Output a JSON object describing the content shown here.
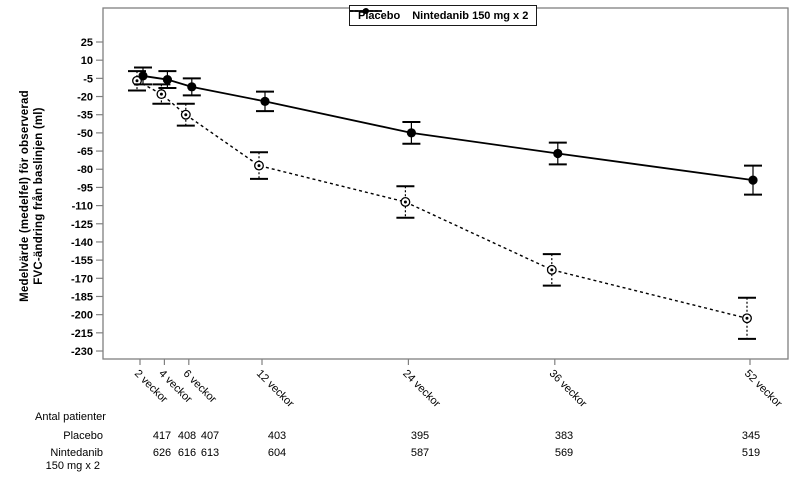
{
  "chart_data": {
    "type": "line",
    "ylabel_line1": "Medelvärde (medelfel) för observerad",
    "ylabel_line2": "FVC-ändring från baslinjen (ml)",
    "ylim": [
      -230,
      25
    ],
    "y_ticks": [
      25,
      10,
      -5,
      -20,
      -35,
      -50,
      -65,
      -80,
      -95,
      -110,
      -125,
      -140,
      -155,
      -170,
      -185,
      -200,
      -215,
      -230
    ],
    "weeks": [
      2,
      4,
      6,
      12,
      24,
      36,
      52
    ],
    "x_tick_labels": [
      "2 veckor",
      "4 veckor",
      "6 veckor",
      "12 veckor",
      "24 veckor",
      "36 veckor",
      "52 veckor"
    ],
    "legend_position": "top-center",
    "grid": "off",
    "series": [
      {
        "name": "Placebo",
        "style": "dashed",
        "marker": "open-circle-dot",
        "values": [
          -7,
          -18,
          -35,
          -77,
          -107,
          -163,
          -203
        ],
        "stderr": [
          8,
          8,
          9,
          11,
          13,
          13,
          17
        ]
      },
      {
        "name": "Nintedanib 150 mg x 2",
        "style": "solid",
        "marker": "filled-circle",
        "values": [
          -3,
          -6,
          -12,
          -24,
          -50,
          -67,
          -89
        ],
        "stderr": [
          7,
          7,
          7,
          8,
          9,
          9,
          12
        ]
      }
    ]
  },
  "patients_table": {
    "title": "Antal patienter",
    "rows": [
      {
        "label": "Placebo",
        "label2": "",
        "values": [
          417,
          408,
          407,
          403,
          395,
          383,
          345
        ]
      },
      {
        "label": "Nintedanib",
        "label2": "150 mg x 2",
        "values": [
          626,
          616,
          613,
          604,
          587,
          569,
          519
        ]
      }
    ]
  },
  "colors": {
    "background": "#ffffff",
    "frame": "#808080",
    "line": "#000000",
    "text": "#000000"
  }
}
